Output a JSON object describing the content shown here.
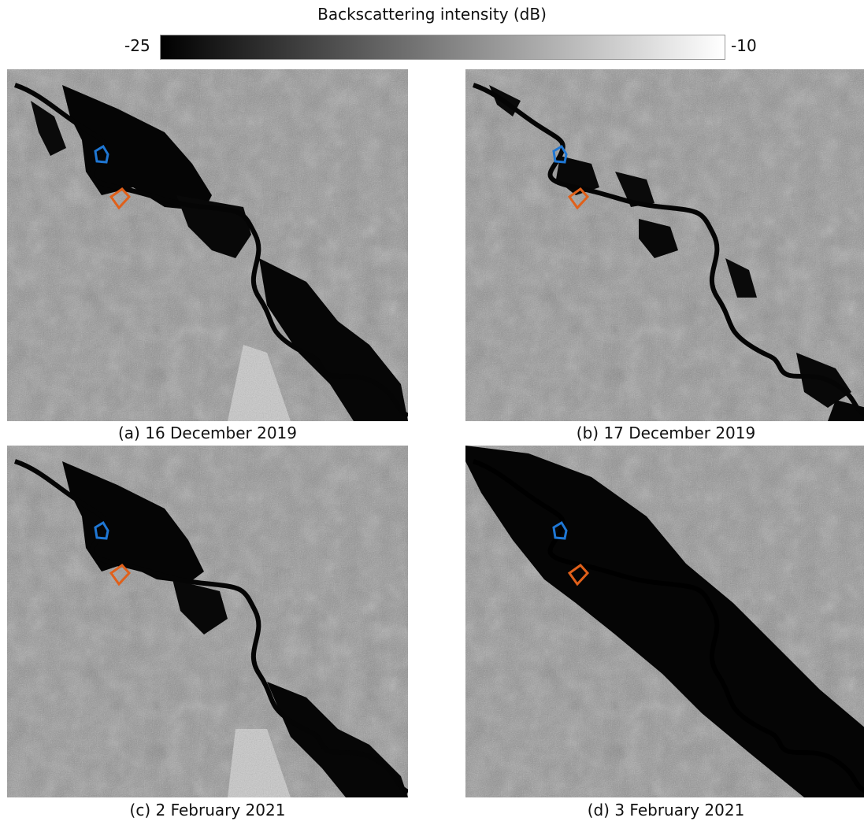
{
  "colorbar": {
    "title": "Backscattering intensity (dB)",
    "min_label": "-25",
    "max_label": "-10",
    "gradient": [
      "#000000",
      "#ffffff"
    ]
  },
  "panels": [
    {
      "caption": "(a) 16 December 2019",
      "flood_extent": "large"
    },
    {
      "caption": "(b) 17 December 2019",
      "flood_extent": "small"
    },
    {
      "caption": "(c) 2 February 2021",
      "flood_extent": "large"
    },
    {
      "caption": "(d) 3 February 2021",
      "flood_extent": "very large"
    }
  ],
  "markers": {
    "blue_region_color": "#1f77d4",
    "orange_region_color": "#e0601a"
  }
}
